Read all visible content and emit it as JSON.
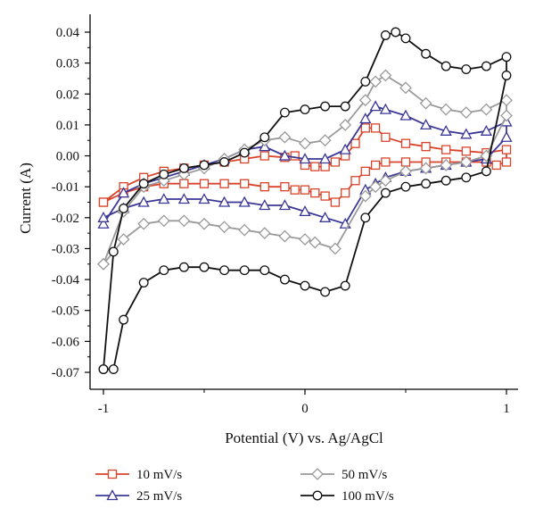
{
  "chart_data": {
    "type": "line",
    "xlabel": "Potential (V) vs. Ag/AgCl",
    "ylabel": "Current (A)",
    "xlim": [
      -1.02,
      1.02
    ],
    "ylim": [
      -0.075,
      0.045
    ],
    "x_ticks": [
      -1,
      0,
      1
    ],
    "x_tick_labels": [
      "-1",
      "0",
      "1"
    ],
    "y_ticks": [
      0.04,
      0.03,
      0.02,
      0.01,
      0.0,
      -0.01,
      -0.02,
      -0.03,
      -0.04,
      -0.05,
      -0.06,
      -0.07
    ],
    "y_tick_labels": [
      "0.04",
      "0.03",
      "0.02",
      "0.01",
      "0.00",
      "-0.01",
      "-0.02",
      "-0.03",
      "-0.04",
      "-0.05",
      "-0.06",
      "-0.07"
    ],
    "legend_position": "bottom",
    "grid": false,
    "series": [
      {
        "name": "10 mV/s",
        "color": "#d9432b",
        "marker": "square",
        "x": [
          -1.0,
          -0.9,
          -0.8,
          -0.7,
          -0.6,
          -0.5,
          -0.4,
          -0.3,
          -0.2,
          -0.1,
          -0.05,
          0.0,
          0.05,
          0.1,
          0.15,
          0.2,
          0.25,
          0.3,
          0.35,
          0.4,
          0.5,
          0.6,
          0.7,
          0.8,
          0.9,
          1.0,
          1.0,
          0.95,
          0.9,
          0.8,
          0.7,
          0.6,
          0.5,
          0.4,
          0.35,
          0.3,
          0.25,
          0.2,
          0.15,
          0.1,
          0.05,
          0.0,
          -0.05,
          -0.1,
          -0.2,
          -0.3,
          -0.4,
          -0.5,
          -0.6,
          -0.7,
          -0.8,
          -0.9,
          -1.0
        ],
        "y": [
          -0.015,
          -0.01,
          -0.007,
          -0.005,
          -0.004,
          -0.003,
          -0.002,
          -0.001,
          0.0,
          -0.0005,
          0.0,
          -0.003,
          -0.0035,
          -0.0035,
          -0.002,
          0.0,
          0.004,
          0.009,
          0.009,
          0.006,
          0.004,
          0.003,
          0.002,
          0.0015,
          0.001,
          0.002,
          -0.002,
          -0.003,
          -0.002,
          -0.002,
          -0.002,
          -0.002,
          -0.002,
          -0.002,
          -0.003,
          -0.005,
          -0.008,
          -0.012,
          -0.015,
          -0.013,
          -0.012,
          -0.011,
          -0.011,
          -0.01,
          -0.01,
          -0.009,
          -0.009,
          -0.009,
          -0.009,
          -0.009,
          -0.01,
          -0.012,
          -0.015
        ]
      },
      {
        "name": "25 mV/s",
        "color": "#3b3796",
        "marker": "triangle",
        "x": [
          -1.0,
          -0.9,
          -0.8,
          -0.7,
          -0.6,
          -0.5,
          -0.4,
          -0.3,
          -0.2,
          -0.1,
          0.0,
          0.1,
          0.2,
          0.3,
          0.35,
          0.4,
          0.5,
          0.6,
          0.7,
          0.8,
          0.9,
          1.0,
          1.0,
          0.9,
          0.8,
          0.7,
          0.6,
          0.5,
          0.4,
          0.35,
          0.3,
          0.2,
          0.1,
          0.0,
          -0.1,
          -0.2,
          -0.3,
          -0.4,
          -0.5,
          -0.6,
          -0.7,
          -0.8,
          -0.9,
          -1.0
        ],
        "y": [
          -0.022,
          -0.012,
          -0.009,
          -0.007,
          -0.005,
          -0.003,
          -0.001,
          0.002,
          0.003,
          0.0,
          -0.001,
          -0.001,
          0.002,
          0.012,
          0.016,
          0.015,
          0.013,
          0.01,
          0.008,
          0.007,
          0.008,
          0.011,
          0.006,
          -0.001,
          -0.002,
          -0.003,
          -0.004,
          -0.005,
          -0.007,
          -0.009,
          -0.011,
          -0.022,
          -0.02,
          -0.018,
          -0.016,
          -0.016,
          -0.015,
          -0.015,
          -0.014,
          -0.014,
          -0.014,
          -0.015,
          -0.017,
          -0.02
        ]
      },
      {
        "name": "50 mV/s",
        "color": "#9a9a9a",
        "marker": "diamond",
        "x": [
          -1.0,
          -0.9,
          -0.8,
          -0.7,
          -0.6,
          -0.5,
          -0.4,
          -0.3,
          -0.2,
          -0.1,
          0.0,
          0.1,
          0.2,
          0.3,
          0.35,
          0.4,
          0.5,
          0.6,
          0.7,
          0.8,
          0.9,
          1.0,
          1.0,
          0.9,
          0.8,
          0.7,
          0.6,
          0.5,
          0.4,
          0.35,
          0.3,
          0.15,
          0.05,
          0.0,
          -0.1,
          -0.2,
          -0.3,
          -0.4,
          -0.5,
          -0.6,
          -0.7,
          -0.8,
          -0.9,
          -1.0
        ],
        "y": [
          -0.035,
          -0.018,
          -0.01,
          -0.008,
          -0.006,
          -0.004,
          -0.001,
          0.002,
          0.005,
          0.006,
          0.004,
          0.005,
          0.01,
          0.018,
          0.024,
          0.026,
          0.022,
          0.017,
          0.015,
          0.014,
          0.015,
          0.018,
          0.013,
          0.0,
          -0.002,
          -0.003,
          -0.004,
          -0.005,
          -0.008,
          -0.01,
          -0.013,
          -0.03,
          -0.028,
          -0.027,
          -0.026,
          -0.025,
          -0.024,
          -0.023,
          -0.022,
          -0.021,
          -0.021,
          -0.022,
          -0.027,
          -0.035
        ]
      },
      {
        "name": "100 mV/s",
        "color": "#111111",
        "marker": "circle",
        "x": [
          -1.0,
          -0.95,
          -0.9,
          -0.8,
          -0.7,
          -0.6,
          -0.5,
          -0.4,
          -0.3,
          -0.2,
          -0.1,
          0.0,
          0.1,
          0.2,
          0.3,
          0.4,
          0.45,
          0.5,
          0.6,
          0.7,
          0.8,
          0.9,
          1.0,
          1.0,
          0.9,
          0.8,
          0.7,
          0.6,
          0.5,
          0.4,
          0.3,
          0.2,
          0.1,
          0.0,
          -0.1,
          -0.2,
          -0.3,
          -0.4,
          -0.5,
          -0.6,
          -0.7,
          -0.8,
          -0.9,
          -0.95,
          -1.0
        ],
        "y": [
          -0.069,
          -0.031,
          -0.017,
          -0.009,
          -0.006,
          -0.004,
          -0.003,
          -0.002,
          0.001,
          0.006,
          0.014,
          0.015,
          0.016,
          0.016,
          0.024,
          0.039,
          0.04,
          0.038,
          0.033,
          0.029,
          0.028,
          0.029,
          0.032,
          0.026,
          -0.005,
          -0.007,
          -0.008,
          -0.009,
          -0.01,
          -0.012,
          -0.02,
          -0.042,
          -0.044,
          -0.042,
          -0.04,
          -0.037,
          -0.037,
          -0.037,
          -0.036,
          -0.036,
          -0.037,
          -0.041,
          -0.053,
          -0.069,
          -0.069
        ]
      }
    ]
  }
}
